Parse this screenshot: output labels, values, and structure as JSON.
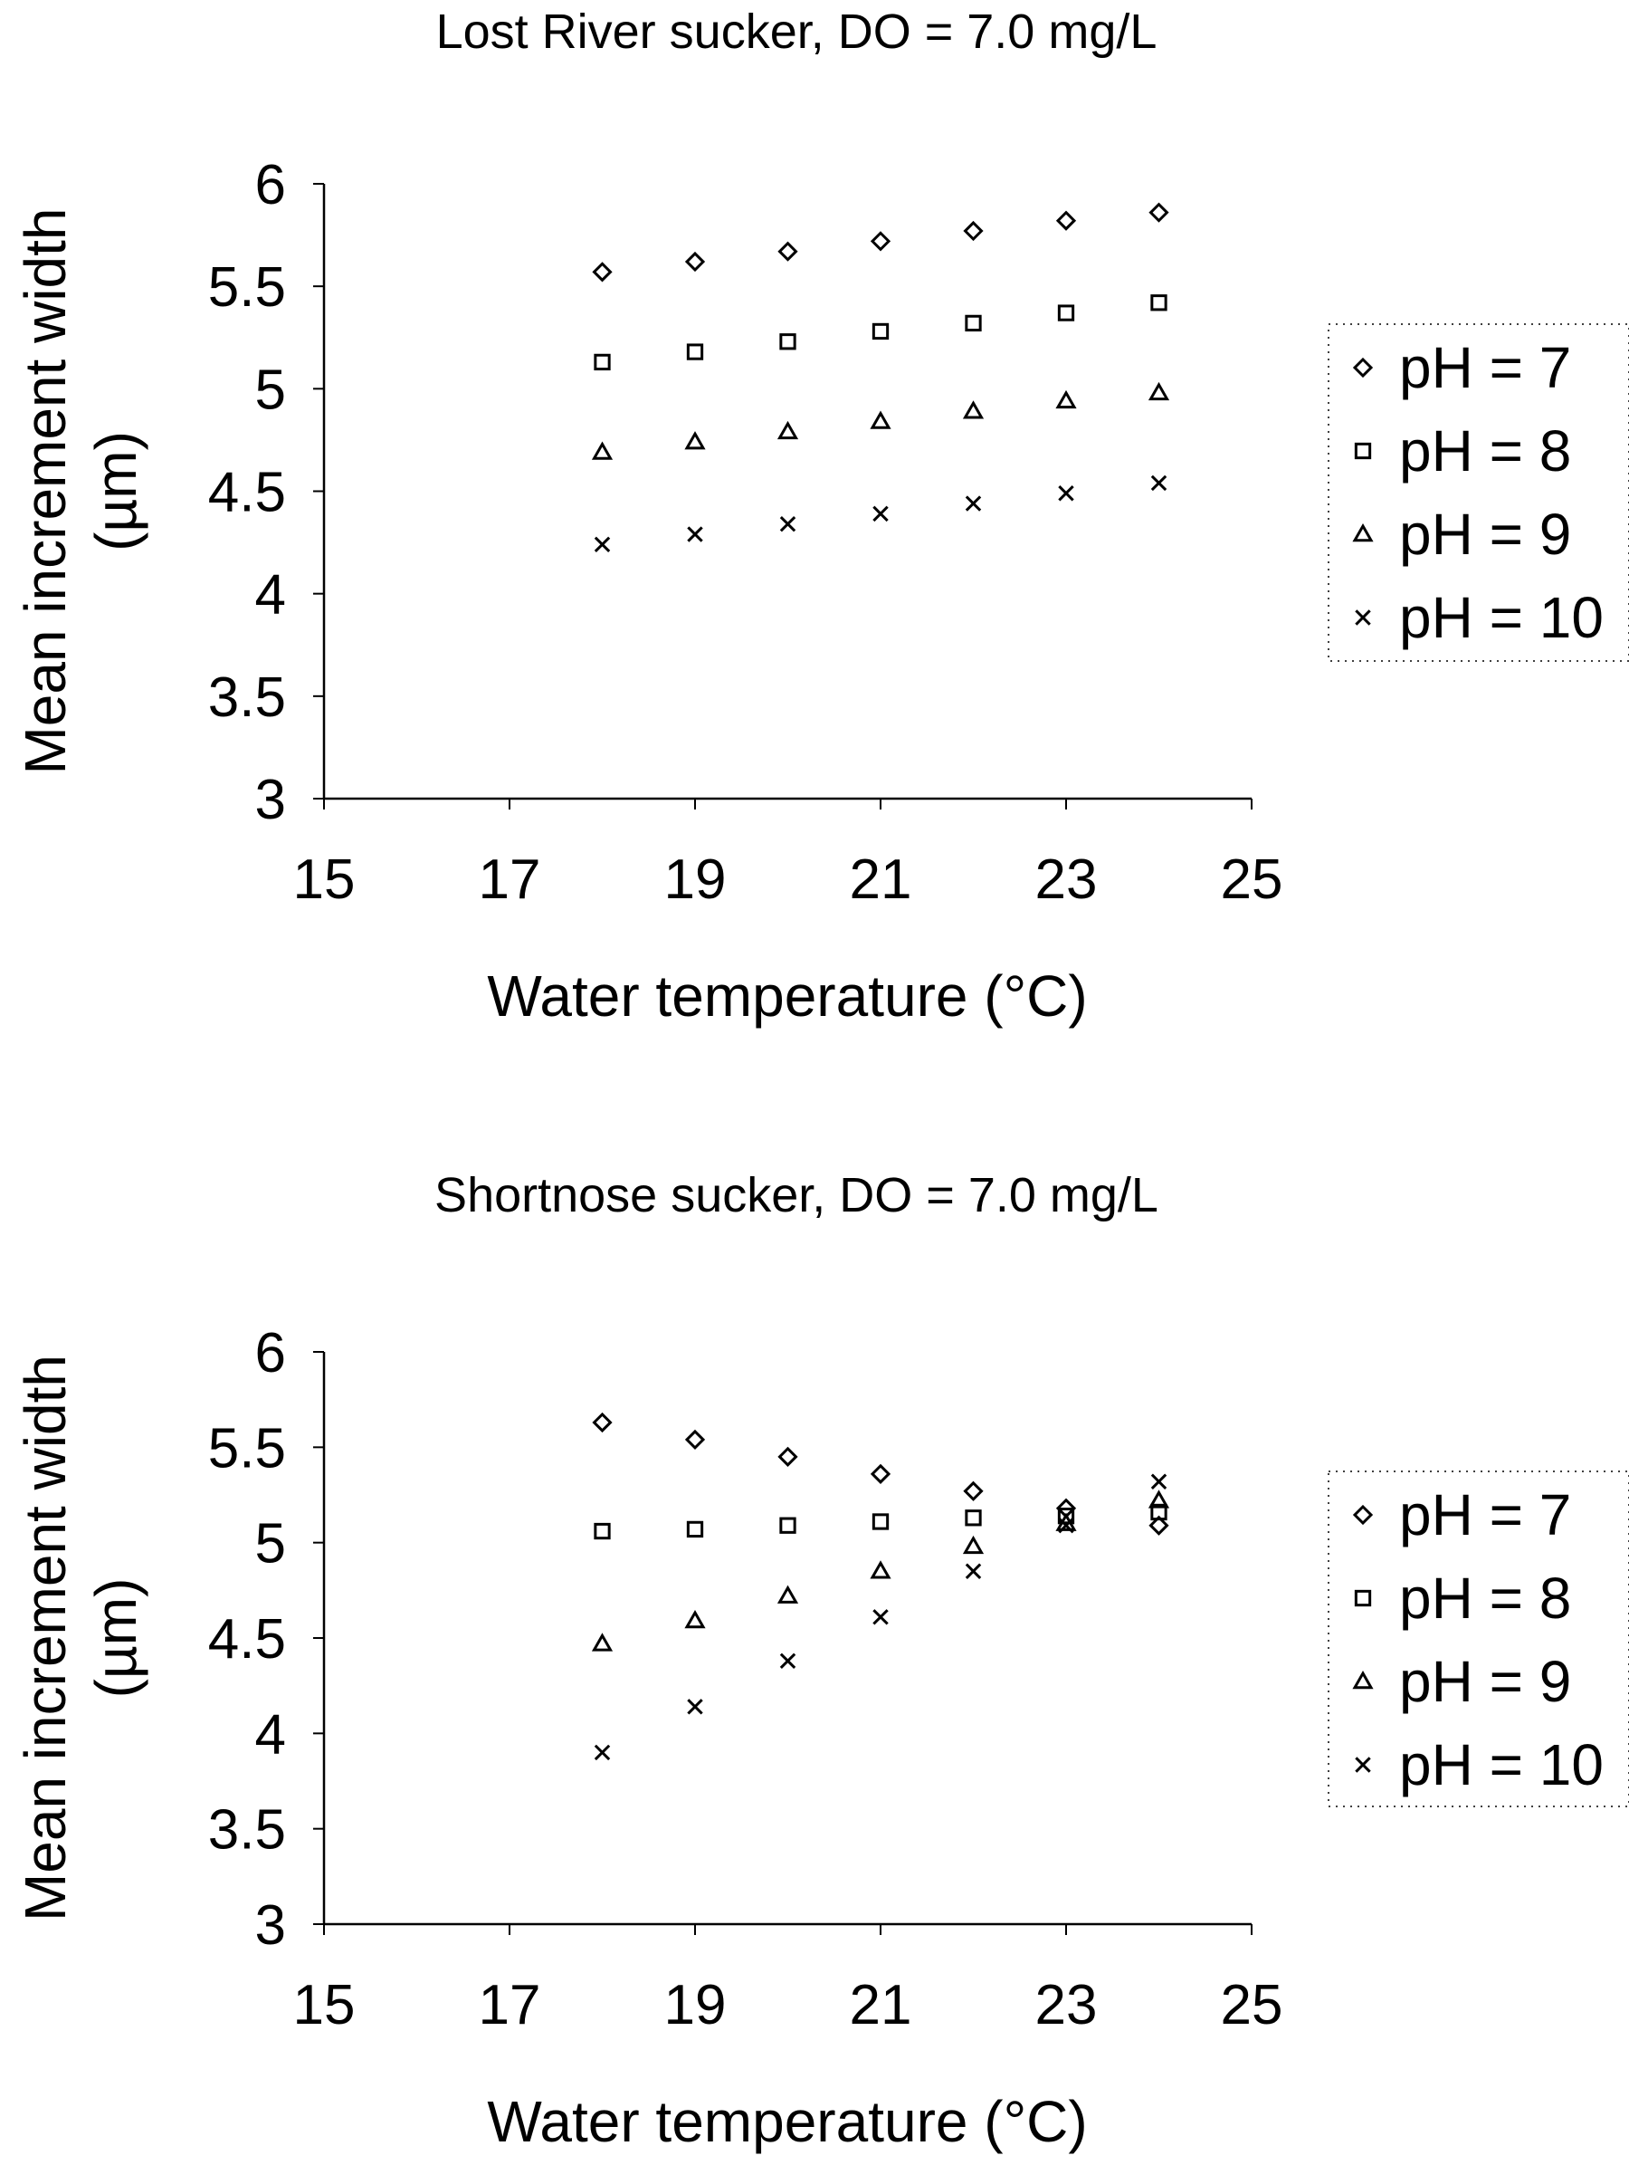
{
  "chart_data": [
    {
      "type": "scatter",
      "title": "Lost River sucker, DO = 7.0 mg/L",
      "xlabel": "Water temperature (°C)",
      "ylabel_lines": [
        "Mean increment width",
        "(µm)"
      ],
      "xlim": [
        15,
        25
      ],
      "ylim": [
        3,
        6
      ],
      "xticks": [
        "15",
        "17",
        "19",
        "21",
        "23",
        "25"
      ],
      "yticks": [
        "3",
        "3.5",
        "4",
        "4.5",
        "5",
        "5.5",
        "6"
      ],
      "grid": false,
      "legend_position": "right",
      "x": [
        18,
        19,
        20,
        21,
        22,
        23,
        24
      ],
      "series": [
        {
          "name": "pH = 7",
          "marker": "diamond",
          "values": [
            5.57,
            5.62,
            5.67,
            5.72,
            5.77,
            5.82,
            5.86
          ]
        },
        {
          "name": "pH = 8",
          "marker": "square",
          "values": [
            5.13,
            5.18,
            5.23,
            5.28,
            5.32,
            5.37,
            5.42
          ]
        },
        {
          "name": "pH = 9",
          "marker": "triangle",
          "values": [
            4.69,
            4.74,
            4.79,
            4.84,
            4.89,
            4.94,
            4.98
          ]
        },
        {
          "name": "pH = 10",
          "marker": "x",
          "values": [
            4.24,
            4.29,
            4.34,
            4.39,
            4.44,
            4.49,
            4.54
          ]
        }
      ]
    },
    {
      "type": "scatter",
      "title": "Shortnose sucker, DO = 7.0 mg/L",
      "xlabel": "Water temperature (°C)",
      "ylabel_lines": [
        "Mean increment width",
        "(µm)"
      ],
      "xlim": [
        15,
        25
      ],
      "ylim": [
        3,
        6
      ],
      "xticks": [
        "15",
        "17",
        "19",
        "21",
        "23",
        "25"
      ],
      "yticks": [
        "3",
        "3.5",
        "4",
        "4.5",
        "5",
        "5.5",
        "6"
      ],
      "grid": false,
      "legend_position": "right",
      "x": [
        18,
        19,
        20,
        21,
        22,
        23,
        24
      ],
      "series": [
        {
          "name": "pH = 7",
          "marker": "diamond",
          "values": [
            5.63,
            5.54,
            5.45,
            5.36,
            5.27,
            5.18,
            5.09
          ]
        },
        {
          "name": "pH = 8",
          "marker": "square",
          "values": [
            5.06,
            5.07,
            5.09,
            5.11,
            5.13,
            5.14,
            5.16
          ]
        },
        {
          "name": "pH = 9",
          "marker": "triangle",
          "values": [
            4.47,
            4.59,
            4.72,
            4.85,
            4.98,
            5.1,
            5.22
          ]
        },
        {
          "name": "pH = 10",
          "marker": "x",
          "values": [
            3.9,
            4.14,
            4.38,
            4.61,
            4.85,
            5.09,
            5.32
          ]
        }
      ]
    }
  ]
}
